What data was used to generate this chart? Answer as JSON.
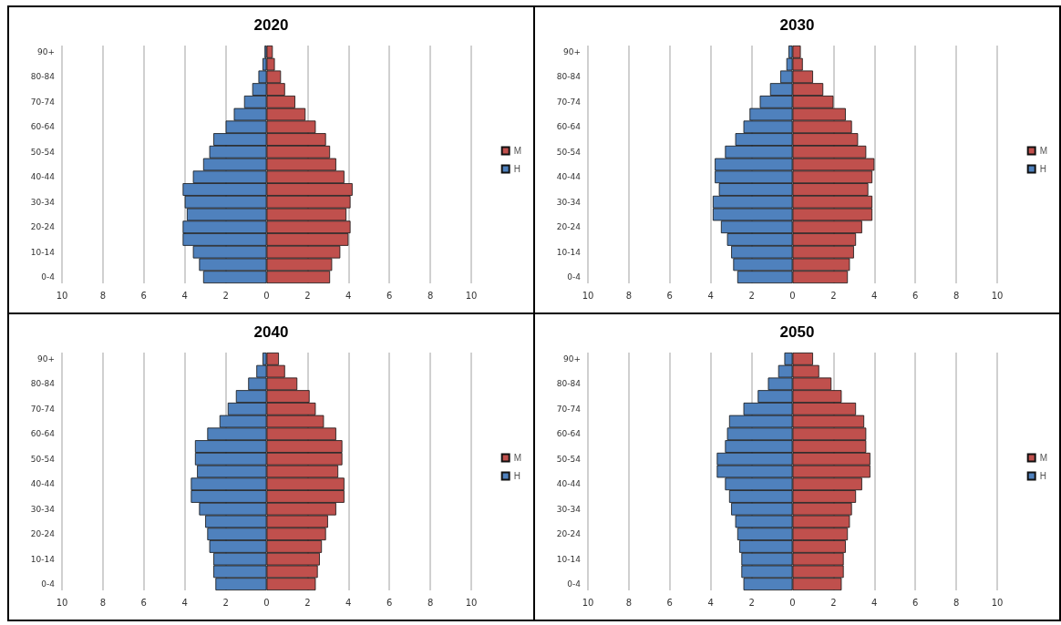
{
  "chart_data": [
    {
      "type": "bar",
      "title": "2020",
      "orientation": "horizontal",
      "stacked": true,
      "categories": [
        "90+",
        null,
        "80-84",
        null,
        "70-74",
        null,
        "60-64",
        null,
        "50-54",
        null,
        "40-44",
        null,
        "30-34",
        null,
        "20-24",
        null,
        "10-14",
        null,
        "0-4"
      ],
      "series": [
        {
          "name": "M",
          "color": "#c0504d",
          "values": [
            0.3,
            0.4,
            0.7,
            0.9,
            1.4,
            1.9,
            2.4,
            2.9,
            3.1,
            3.4,
            3.8,
            4.2,
            4.1,
            3.9,
            4.1,
            4.0,
            3.6,
            3.2,
            3.1
          ]
        },
        {
          "name": "H",
          "color": "#4f81bd",
          "values": [
            -0.1,
            -0.2,
            -0.4,
            -0.7,
            -1.1,
            -1.6,
            -2.0,
            -2.6,
            -2.8,
            -3.1,
            -3.6,
            -4.1,
            -4.0,
            -3.9,
            -4.1,
            -4.1,
            -3.6,
            -3.3,
            -3.1
          ]
        }
      ],
      "xlim": [
        -10,
        10
      ],
      "xticks": [
        {
          "value": -10,
          "label": "10"
        },
        {
          "value": -8,
          "label": "8"
        },
        {
          "value": -6,
          "label": "6"
        },
        {
          "value": -4,
          "label": "4"
        },
        {
          "value": -2,
          "label": "2"
        },
        0,
        2,
        4,
        6,
        8,
        10
      ],
      "grid": "x",
      "legend": "right"
    },
    {
      "type": "bar",
      "title": "2030",
      "orientation": "horizontal",
      "stacked": true,
      "categories": [
        "90+",
        null,
        "80-84",
        null,
        "70-74",
        null,
        "60-64",
        null,
        "50-54",
        null,
        "40-44",
        null,
        "30-34",
        null,
        "20-24",
        null,
        "10-14",
        null,
        "0-4"
      ],
      "series": [
        {
          "name": "M",
          "color": "#c0504d",
          "values": [
            0.4,
            0.5,
            1.0,
            1.5,
            2.0,
            2.6,
            2.9,
            3.2,
            3.6,
            4.0,
            3.9,
            3.7,
            3.9,
            3.9,
            3.4,
            3.1,
            3.0,
            2.8,
            2.7
          ]
        },
        {
          "name": "H",
          "color": "#4f81bd",
          "values": [
            -0.2,
            -0.3,
            -0.6,
            -1.1,
            -1.6,
            -2.1,
            -2.4,
            -2.8,
            -3.3,
            -3.8,
            -3.8,
            -3.6,
            -3.9,
            -3.9,
            -3.5,
            -3.2,
            -3.0,
            -2.9,
            -2.7
          ]
        }
      ],
      "xlim": [
        -10,
        10
      ],
      "xticks": [
        {
          "value": -10,
          "label": "10"
        },
        {
          "value": -8,
          "label": "8"
        },
        {
          "value": -6,
          "label": "6"
        },
        {
          "value": -4,
          "label": "4"
        },
        {
          "value": -2,
          "label": "2"
        },
        0,
        2,
        4,
        6,
        8,
        10
      ],
      "grid": "x",
      "legend": "right"
    },
    {
      "type": "bar",
      "title": "2040",
      "orientation": "horizontal",
      "stacked": true,
      "categories": [
        "90+",
        null,
        "80-84",
        null,
        "70-74",
        null,
        "60-64",
        null,
        "50-54",
        null,
        "40-44",
        null,
        "30-34",
        null,
        "20-24",
        null,
        "10-14",
        null,
        "0-4"
      ],
      "series": [
        {
          "name": "M",
          "color": "#c0504d",
          "values": [
            0.6,
            0.9,
            1.5,
            2.1,
            2.4,
            2.8,
            3.4,
            3.7,
            3.7,
            3.5,
            3.8,
            3.8,
            3.4,
            3.0,
            2.9,
            2.7,
            2.6,
            2.5,
            2.4
          ]
        },
        {
          "name": "H",
          "color": "#4f81bd",
          "values": [
            -0.2,
            -0.5,
            -0.9,
            -1.5,
            -1.9,
            -2.3,
            -2.9,
            -3.5,
            -3.5,
            -3.4,
            -3.7,
            -3.7,
            -3.3,
            -3.0,
            -2.9,
            -2.8,
            -2.6,
            -2.6,
            -2.5
          ]
        }
      ],
      "xlim": [
        -10,
        10
      ],
      "xticks": [
        {
          "value": -10,
          "label": "10"
        },
        {
          "value": -8,
          "label": "8"
        },
        {
          "value": -6,
          "label": "6"
        },
        {
          "value": -4,
          "label": "4"
        },
        {
          "value": -2,
          "label": "2"
        },
        0,
        2,
        4,
        6,
        8,
        10
      ],
      "grid": "x",
      "legend": "right"
    },
    {
      "type": "bar",
      "title": "2050",
      "orientation": "horizontal",
      "stacked": true,
      "categories": [
        "90+",
        null,
        "80-84",
        null,
        "70-74",
        null,
        "60-64",
        null,
        "50-54",
        null,
        "40-44",
        null,
        "30-34",
        null,
        "20-24",
        null,
        "10-14",
        null,
        "0-4"
      ],
      "series": [
        {
          "name": "M",
          "color": "#c0504d",
          "values": [
            1.0,
            1.3,
            1.9,
            2.4,
            3.1,
            3.5,
            3.6,
            3.6,
            3.8,
            3.8,
            3.4,
            3.1,
            2.9,
            2.8,
            2.7,
            2.6,
            2.5,
            2.5,
            2.4
          ]
        },
        {
          "name": "H",
          "color": "#4f81bd",
          "values": [
            -0.4,
            -0.7,
            -1.2,
            -1.7,
            -2.4,
            -3.1,
            -3.2,
            -3.3,
            -3.7,
            -3.7,
            -3.3,
            -3.1,
            -3.0,
            -2.8,
            -2.7,
            -2.6,
            -2.5,
            -2.5,
            -2.4
          ]
        }
      ],
      "xlim": [
        -10,
        10
      ],
      "xticks": [
        {
          "value": -10,
          "label": "10"
        },
        {
          "value": -8,
          "label": "8"
        },
        {
          "value": -6,
          "label": "6"
        },
        {
          "value": -4,
          "label": "4"
        },
        {
          "value": -2,
          "label": "2"
        },
        0,
        2,
        4,
        6,
        8,
        10
      ],
      "grid": "x",
      "legend": "right"
    }
  ]
}
